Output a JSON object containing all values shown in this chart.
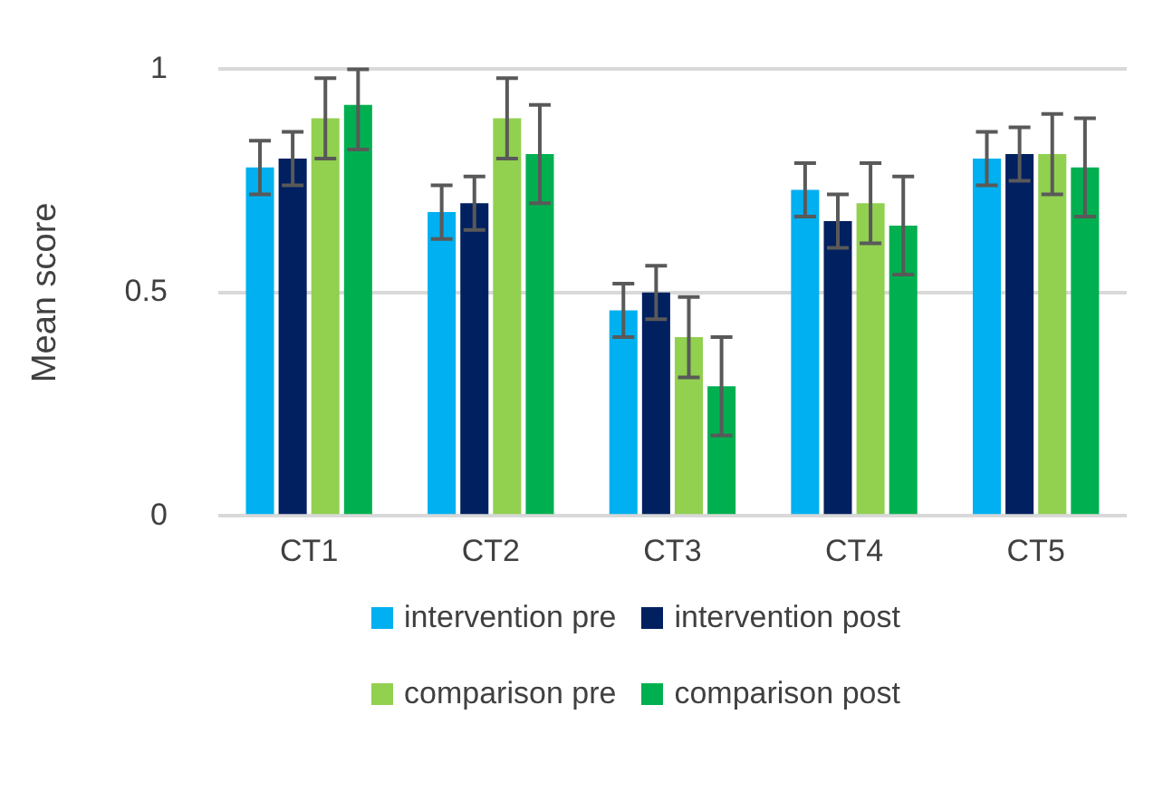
{
  "chart_data": {
    "type": "bar",
    "ylabel": "Mean score",
    "categories": [
      "CT1",
      "CT2",
      "CT3",
      "CT4",
      "CT5"
    ],
    "series": [
      {
        "name": "intervention pre",
        "color": "#00b0f0",
        "values": [
          0.78,
          0.68,
          0.46,
          0.73,
          0.8
        ],
        "errors": [
          0.06,
          0.06,
          0.06,
          0.06,
          0.06
        ]
      },
      {
        "name": "intervention post",
        "color": "#002060",
        "values": [
          0.8,
          0.7,
          0.5,
          0.66,
          0.81
        ],
        "errors": [
          0.06,
          0.06,
          0.06,
          0.06,
          0.06
        ]
      },
      {
        "name": "comparison pre",
        "color": "#92d050",
        "values": [
          0.89,
          0.89,
          0.4,
          0.7,
          0.81
        ],
        "errors": [
          0.09,
          0.09,
          0.09,
          0.09,
          0.09
        ]
      },
      {
        "name": "comparison post",
        "color": "#00b050",
        "values": [
          0.92,
          0.81,
          0.29,
          0.65,
          0.78
        ],
        "errors": [
          [
            0.82,
            1.0
          ],
          0.11,
          0.11,
          0.11,
          0.11
        ]
      }
    ],
    "ylim": [
      0,
      1
    ],
    "yticks": [
      0,
      0.5,
      1
    ],
    "grid": "y",
    "legend": "bottom"
  }
}
